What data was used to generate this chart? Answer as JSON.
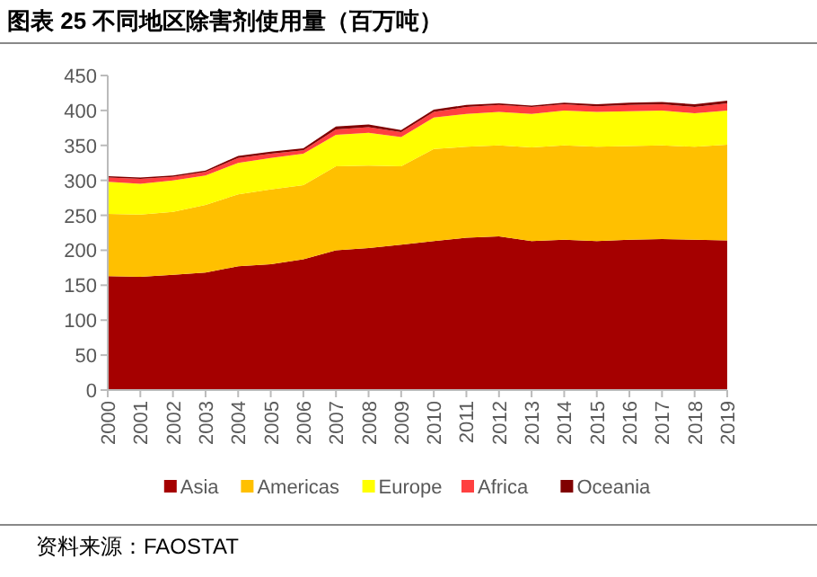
{
  "chart_data": {
    "type": "area",
    "stacked": true,
    "title": "图表 25 不同地区除害剂使用量（百万吨）",
    "annotations": [
      "资料来源：FAOSTAT"
    ],
    "categories": [
      "2000",
      "2001",
      "2002",
      "2003",
      "2004",
      "2005",
      "2006",
      "2007",
      "2008",
      "2009",
      "2010",
      "2011",
      "2012",
      "2013",
      "2014",
      "2015",
      "2016",
      "2017",
      "2018",
      "2019"
    ],
    "ylim": [
      0,
      450
    ],
    "yticks": [
      0,
      50,
      100,
      150,
      200,
      250,
      300,
      350,
      400,
      450
    ],
    "grid": false,
    "legend": "bottom",
    "series": [
      {
        "name": "Asia",
        "color": "#a50000",
        "values": [
          163,
          162,
          165,
          168,
          177,
          180,
          187,
          200,
          203,
          208,
          213,
          218,
          220,
          213,
          215,
          213,
          215,
          216,
          215,
          214
        ]
      },
      {
        "name": "Americas",
        "color": "#ffc000",
        "values": [
          89,
          89,
          90,
          97,
          103,
          107,
          106,
          120,
          118,
          112,
          132,
          130,
          130,
          134,
          135,
          135,
          134,
          134,
          133,
          137
        ]
      },
      {
        "name": "Europe",
        "color": "#ffff00",
        "values": [
          46,
          44,
          45,
          42,
          45,
          45,
          45,
          45,
          47,
          42,
          45,
          47,
          48,
          48,
          50,
          50,
          50,
          50,
          48,
          49
        ]
      },
      {
        "name": "Africa",
        "color": "#ff4040",
        "values": [
          6,
          7,
          5,
          5,
          7,
          6,
          5,
          8,
          8,
          7,
          8,
          10,
          10,
          10,
          9,
          8,
          9,
          9,
          9,
          10
        ]
      },
      {
        "name": "Oceania",
        "color": "#800000",
        "values": [
          2,
          2,
          2,
          2,
          3,
          3,
          3,
          4,
          4,
          3,
          3,
          3,
          2,
          2,
          2,
          3,
          3,
          3,
          4,
          4
        ]
      }
    ]
  }
}
